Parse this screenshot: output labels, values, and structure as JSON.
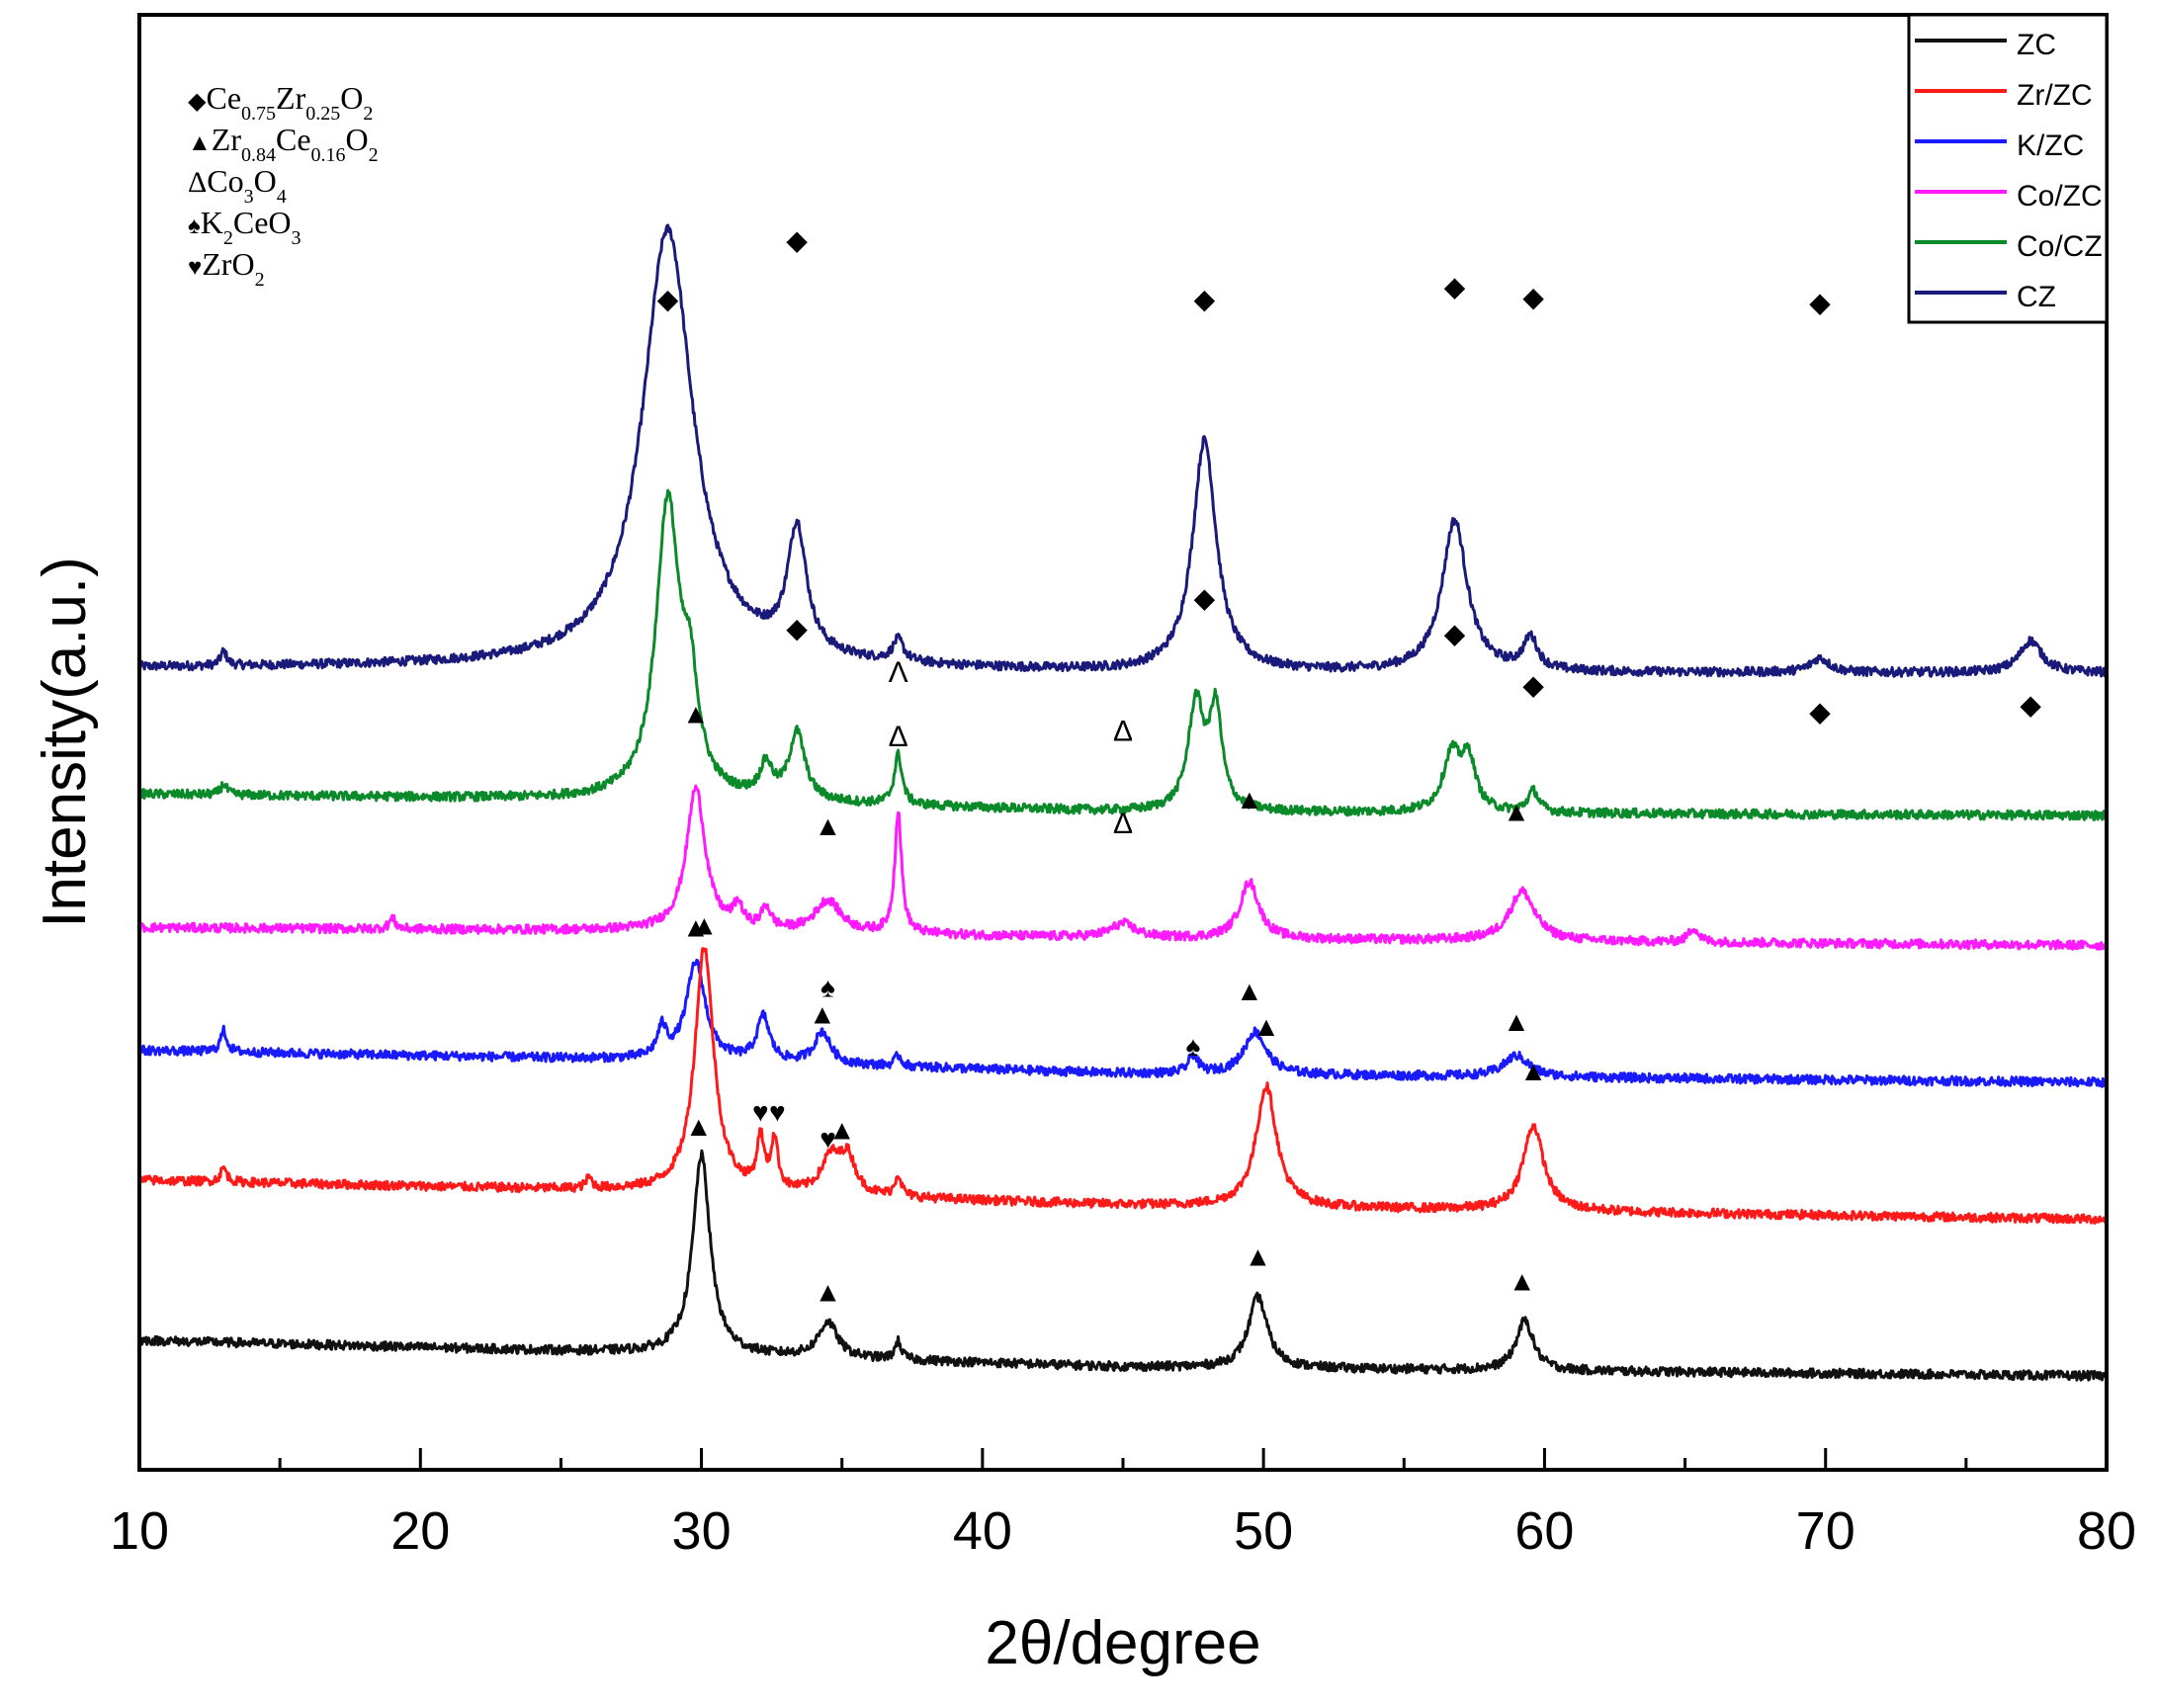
{
  "chart_data": {
    "type": "line",
    "title": "",
    "xlabel": "2θ/degree",
    "ylabel": "Intensity(a.u.)",
    "xlim": [
      10,
      80
    ],
    "x_ticks": [
      10,
      20,
      30,
      40,
      50,
      60,
      70,
      80
    ],
    "x_tick_labels": [
      "10",
      "20",
      "30",
      "40",
      "50",
      "60",
      "70",
      "80"
    ],
    "y_ticks_shown": false,
    "grid": false,
    "legend_position": "top-right",
    "legend": [
      "ZC",
      "Zr/ZC",
      "K/ZC",
      "Co/ZC",
      "Co/CZ",
      "CZ"
    ],
    "phase_legend": [
      {
        "symbol": "◆",
        "label": "Ce",
        "formula": [
          [
            "Ce",
            "0.75"
          ],
          [
            "Zr",
            "0.25"
          ],
          [
            "O",
            "2"
          ]
        ]
      },
      {
        "symbol": "▲",
        "label": "Zr",
        "formula": [
          [
            "Zr",
            "0.84"
          ],
          [
            "Ce",
            "0.16"
          ],
          [
            "O",
            "2"
          ]
        ]
      },
      {
        "symbol": "Δ",
        "label": "Co",
        "formula": [
          [
            "Co",
            "3"
          ],
          [
            "O",
            "4"
          ]
        ]
      },
      {
        "symbol": "♠",
        "label": "K",
        "formula": [
          [
            "K",
            "2"
          ],
          [
            "CeO",
            "3"
          ]
        ]
      },
      {
        "symbol": "♥",
        "label": "ZrO",
        "formula": [
          [
            "ZrO",
            "2"
          ]
        ]
      }
    ],
    "series": [
      {
        "name": "CZ",
        "color": "#1a1a7a",
        "offset": 85,
        "baseline": [
          [
            10,
            3
          ],
          [
            30,
            4
          ],
          [
            45,
            0
          ],
          [
            80,
            0
          ]
        ],
        "peaks": [
          [
            28.8,
            1.6,
            245
          ],
          [
            33.4,
            0.6,
            70
          ],
          [
            37.0,
            0.35,
            12
          ],
          [
            47.9,
            0.75,
            130
          ],
          [
            56.8,
            0.8,
            85
          ],
          [
            59.5,
            0.45,
            18
          ],
          [
            69.8,
            0.6,
            8
          ],
          [
            77.3,
            0.7,
            18
          ],
          [
            13.0,
            0.2,
            8
          ]
        ],
        "markers": [
          [
            28.8,
            440,
            "◆"
          ],
          [
            33.4,
            238,
            "◆"
          ],
          [
            47.9,
            205,
            "◆"
          ],
          [
            56.8,
            212,
            "◆"
          ],
          [
            59.6,
            206,
            "◆"
          ],
          [
            69.8,
            203,
            "◆"
          ],
          [
            77.3,
            210,
            "◆"
          ]
        ]
      },
      {
        "name": "Co/CZ",
        "color": "#0b8a2a",
        "offset": 55,
        "baseline": [
          [
            10,
            12
          ],
          [
            30,
            8
          ],
          [
            45,
            2
          ],
          [
            80,
            0
          ]
        ],
        "peaks": [
          [
            28.8,
            0.75,
            165
          ],
          [
            29.6,
            0.5,
            50
          ],
          [
            32.3,
            0.4,
            18
          ],
          [
            33.4,
            0.5,
            38
          ],
          [
            37.0,
            0.25,
            28
          ],
          [
            47.6,
            0.5,
            60
          ],
          [
            48.3,
            0.4,
            55
          ],
          [
            56.7,
            0.55,
            32
          ],
          [
            57.3,
            0.45,
            28
          ],
          [
            59.6,
            0.35,
            12
          ],
          [
            13.0,
            0.2,
            6
          ]
        ],
        "markers": [
          [
            28.8,
            285,
            "◆"
          ],
          [
            33.4,
            100,
            "◆"
          ],
          [
            37.0,
            75,
            "Λ"
          ],
          [
            45.0,
            42,
            "Δ"
          ],
          [
            47.9,
            117,
            "◆"
          ],
          [
            56.8,
            97,
            "◆"
          ],
          [
            59.6,
            68,
            "◆"
          ],
          [
            69.8,
            53,
            "◆"
          ],
          [
            77.3,
            57,
            "◆"
          ]
        ]
      },
      {
        "name": "Co/ZC",
        "color": "#ff1aff",
        "offset": 55,
        "baseline": [
          [
            10,
            10
          ],
          [
            30,
            8
          ],
          [
            45,
            4
          ],
          [
            80,
            0
          ]
        ],
        "peaks": [
          [
            29.8,
            0.6,
            80
          ],
          [
            31.3,
            0.3,
            12
          ],
          [
            32.3,
            0.3,
            12
          ],
          [
            34.5,
            0.8,
            18
          ],
          [
            37.0,
            0.22,
            68
          ],
          [
            45.0,
            0.8,
            8
          ],
          [
            49.5,
            0.6,
            32
          ],
          [
            59.2,
            0.8,
            28
          ],
          [
            65.3,
            0.3,
            8
          ],
          [
            19.0,
            0.2,
            6
          ]
        ],
        "markers": [
          [
            29.8,
            125,
            "▲"
          ],
          [
            34.5,
            62,
            "▲"
          ],
          [
            37.0,
            112,
            "Δ"
          ],
          [
            45.0,
            63,
            "Δ"
          ],
          [
            49.5,
            77,
            "▲"
          ],
          [
            59.0,
            70,
            "▲"
          ]
        ]
      },
      {
        "name": "K/ZC",
        "color": "#1a1aff",
        "offset": 35,
        "baseline": [
          [
            10,
            18
          ],
          [
            30,
            12
          ],
          [
            45,
            5
          ],
          [
            80,
            0
          ]
        ],
        "peaks": [
          [
            28.6,
            0.3,
            16
          ],
          [
            29.8,
            0.6,
            55
          ],
          [
            32.2,
            0.4,
            25
          ],
          [
            34.3,
            0.5,
            18
          ],
          [
            47.5,
            0.3,
            10
          ],
          [
            49.7,
            0.7,
            24
          ],
          [
            59.0,
            0.8,
            12
          ],
          [
            13.0,
            0.2,
            12
          ],
          [
            37.0,
            0.2,
            6
          ]
        ],
        "markers": [
          [
            29.8,
            82,
            "▲"
          ],
          [
            34.5,
            48,
            "♠"
          ],
          [
            34.3,
            33,
            "▲"
          ],
          [
            47.5,
            15,
            "♠"
          ],
          [
            49.5,
            46,
            "▲"
          ],
          [
            59.0,
            29,
            "▲"
          ]
        ]
      },
      {
        "name": "Zr/ZC",
        "color": "#ff1a1a",
        "offset": 18,
        "baseline": [
          [
            10,
            22
          ],
          [
            30,
            15
          ],
          [
            45,
            8
          ],
          [
            80,
            0
          ]
        ],
        "peaks": [
          [
            30.1,
            0.6,
            138
          ],
          [
            32.1,
            0.22,
            28
          ],
          [
            32.6,
            0.22,
            28
          ],
          [
            34.6,
            0.6,
            20
          ],
          [
            35.2,
            0.5,
            20
          ],
          [
            37.0,
            0.2,
            12
          ],
          [
            50.1,
            0.65,
            68
          ],
          [
            59.6,
            0.65,
            48
          ],
          [
            13.0,
            0.2,
            8
          ],
          [
            26.0,
            0.2,
            6
          ]
        ],
        "markers": [
          [
            30.1,
            160,
            "▲"
          ],
          [
            32.1,
            55,
            "♥"
          ],
          [
            32.7,
            55,
            "♥"
          ],
          [
            34.5,
            40,
            "♥"
          ],
          [
            35.0,
            45,
            "▲"
          ],
          [
            50.1,
            103,
            "▲"
          ],
          [
            59.6,
            78,
            "▲"
          ]
        ]
      },
      {
        "name": "ZC",
        "color": "#111111",
        "offset": 0,
        "baseline": [
          [
            10,
            20
          ],
          [
            30,
            12
          ],
          [
            45,
            5
          ],
          [
            80,
            0
          ]
        ],
        "peaks": [
          [
            30.0,
            0.55,
            112
          ],
          [
            34.5,
            0.6,
            20
          ],
          [
            37.0,
            0.2,
            10
          ],
          [
            49.8,
            0.6,
            40
          ],
          [
            59.3,
            0.55,
            28
          ]
        ],
        "markers": [
          [
            29.9,
            135,
            "▲"
          ],
          [
            34.5,
            42,
            "▲"
          ],
          [
            49.8,
            62,
            "▲"
          ],
          [
            59.2,
            48,
            "▲"
          ]
        ]
      }
    ]
  }
}
